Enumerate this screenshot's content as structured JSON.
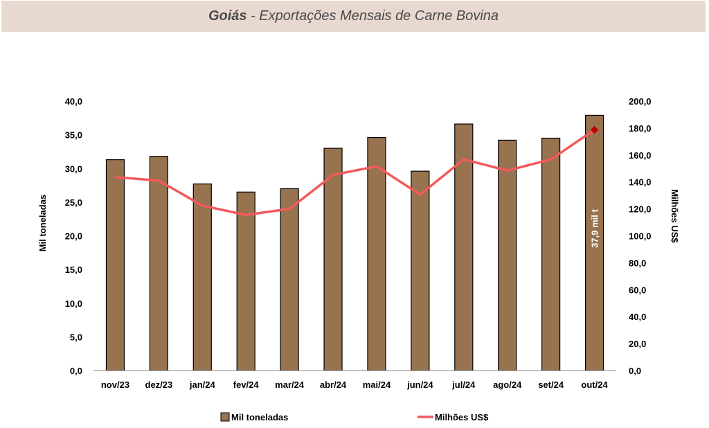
{
  "title": {
    "bold": "Goiás",
    "rest": " - Exportações Mensais de Carne Bovina"
  },
  "colors": {
    "bar": "#987350",
    "line": "#f25a5a",
    "marker": "#c00000",
    "band": "#e8d9d0"
  },
  "chart_data": {
    "type": "bar",
    "categories": [
      "nov/23",
      "dez/23",
      "jan/24",
      "fev/24",
      "mar/24",
      "abr/24",
      "mai/24",
      "jun/24",
      "jul/24",
      "ago/24",
      "set/24",
      "out/24"
    ],
    "series": [
      {
        "name": "Mil toneladas",
        "type": "bar",
        "axis": "left",
        "values": [
          31.3,
          31.8,
          27.7,
          26.5,
          27.0,
          33.0,
          34.6,
          29.6,
          36.6,
          34.2,
          34.5,
          37.9
        ]
      },
      {
        "name": "Milhões US$",
        "type": "line",
        "axis": "right",
        "values": [
          143.6,
          141.0,
          122.4,
          115.5,
          120.0,
          145.2,
          151.6,
          130.6,
          156.8,
          148.4,
          156.7,
          178.7
        ]
      }
    ],
    "ylabel_left": "Mil toneladas",
    "ylabel_right": "Milhões US$",
    "ylim_left": [
      0,
      40
    ],
    "ylim_right": [
      0,
      200
    ],
    "yticks_left": [
      "0,0",
      "5,0",
      "10,0",
      "15,0",
      "20,0",
      "25,0",
      "30,0",
      "35,0",
      "40,0"
    ],
    "yticks_right": [
      "0,0",
      "20,0",
      "40,0",
      "60,0",
      "80,0",
      "100,0",
      "120,0",
      "140,0",
      "160,0",
      "180,0",
      "200,0"
    ],
    "annotation": "37,9 mil t",
    "grid": false,
    "legend_position": "bottom"
  }
}
